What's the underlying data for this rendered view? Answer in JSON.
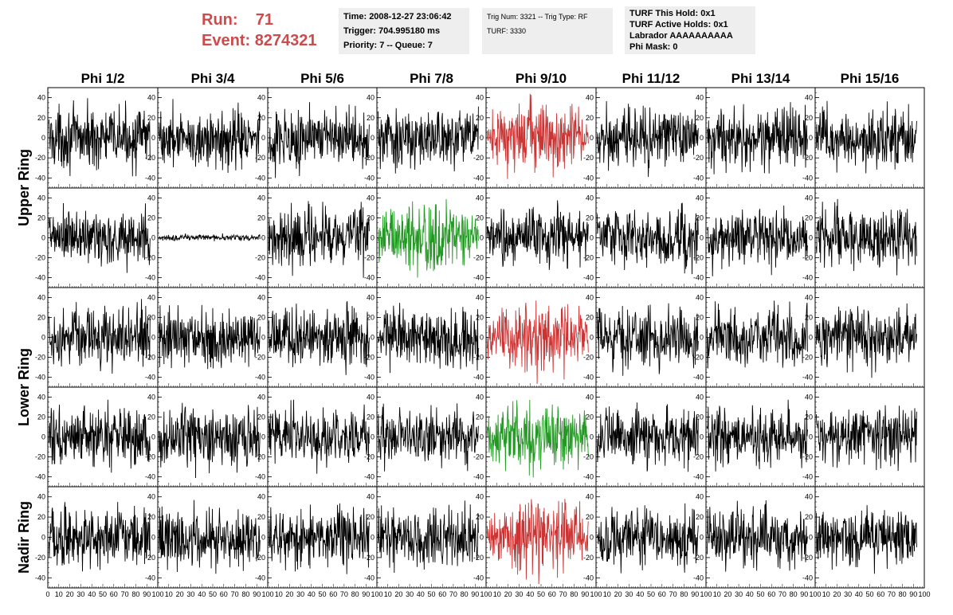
{
  "header": {
    "run_label": "Run:",
    "run_value": "71",
    "event_label": "Event:",
    "event_value": "8274321",
    "box1": [
      "Time: 2008-12-27 23:06:42",
      "Trigger: 704.995180 ms",
      "Priority: 7 -- Queue: 7"
    ],
    "box2": [
      "Trig Num: 3321 -- Trig Type: RF",
      "",
      "TURF: 3330"
    ],
    "box3": [
      "TURF This Hold: 0x1",
      "TURF Active Holds: 0x1",
      "Labrador AAAAAAAAAA",
      "Phi Mask: 0"
    ]
  },
  "chart_data": {
    "type": "line",
    "columns": [
      "Phi 1/2",
      "Phi 3/4",
      "Phi 5/6",
      "Phi 7/8",
      "Phi 9/10",
      "Phi 11/12",
      "Phi 13/14",
      "Phi 15/16"
    ],
    "row_groups": [
      "Upper Ring",
      "Lower Ring",
      "Nadir Ring"
    ],
    "xlim": [
      0,
      100
    ],
    "ylim": [
      -50,
      50
    ],
    "y_ticks": [
      -40,
      -20,
      0,
      20,
      40
    ],
    "x_ticks": [
      0,
      10,
      20,
      30,
      40,
      50,
      60,
      70,
      80,
      90,
      100
    ],
    "samples_per_trace": 260,
    "trace_x_max": 92,
    "colors": {
      "normal": "#000000",
      "triggered": "#cc3333",
      "highlight": "#229922"
    },
    "highlighted_panels": [
      {
        "row": 0,
        "col": 4,
        "color": "triggered"
      },
      {
        "row": 1,
        "col": 3,
        "color": "highlight"
      },
      {
        "row": 2,
        "col": 4,
        "color": "triggered"
      },
      {
        "row": 3,
        "col": 4,
        "color": "highlight"
      },
      {
        "row": 4,
        "col": 4,
        "color": "triggered"
      }
    ],
    "quiet_panels": [
      {
        "row": 1,
        "col": 1
      }
    ],
    "approx_amplitude": 22
  }
}
